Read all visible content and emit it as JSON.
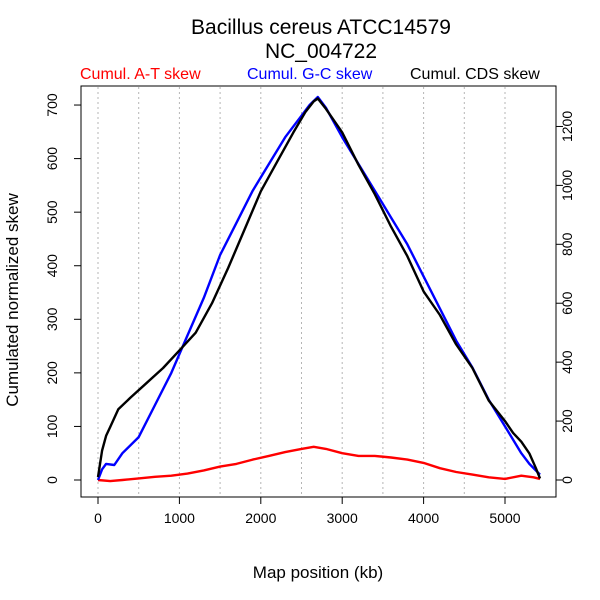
{
  "chart_data": {
    "type": "line",
    "title": "Bacillus cereus ATCC14579",
    "subtitle": "NC_004722",
    "xlabel": "Map position (kb)",
    "ylabel": "Cumulated normalized skew",
    "xlim": [
      0,
      5430
    ],
    "ylim_left": [
      0,
      715
    ],
    "ylim_right": [
      0,
      1300
    ],
    "x_ticks": [
      "0",
      "1000",
      "2000",
      "3000",
      "4000",
      "5000"
    ],
    "y_ticks_left": [
      "0",
      "100",
      "200",
      "300",
      "400",
      "500",
      "600",
      "700"
    ],
    "y_ticks_right": [
      "0",
      "200",
      "400",
      "600",
      "800",
      "1000",
      "1200"
    ],
    "grid": "vertical dotted lines every 500 kb",
    "legend": [
      {
        "label": "Cumul. A-T skew",
        "color": "#ff0000"
      },
      {
        "label": "Cumul. G-C skew",
        "color": "#0000ff"
      },
      {
        "label": "Cumul. CDS skew",
        "color": "#000000"
      }
    ],
    "series": [
      {
        "name": "Cumul. A-T skew",
        "color": "#ff0000",
        "axis": "left",
        "x": [
          0,
          150,
          300,
          500,
          700,
          900,
          1100,
          1300,
          1500,
          1700,
          1900,
          2100,
          2300,
          2500,
          2650,
          2800,
          3000,
          3200,
          3400,
          3600,
          3800,
          4000,
          4200,
          4400,
          4600,
          4800,
          5000,
          5200,
          5350,
          5430
        ],
        "y": [
          0,
          -2,
          0,
          3,
          6,
          8,
          12,
          18,
          25,
          30,
          38,
          45,
          52,
          58,
          62,
          58,
          50,
          45,
          45,
          42,
          38,
          32,
          22,
          15,
          10,
          5,
          2,
          8,
          5,
          2
        ]
      },
      {
        "name": "Cumul. G-C skew",
        "color": "#0000ff",
        "axis": "left",
        "x": [
          0,
          50,
          100,
          200,
          300,
          500,
          700,
          900,
          1100,
          1300,
          1500,
          1700,
          1900,
          2100,
          2300,
          2500,
          2600,
          2700,
          2800,
          3000,
          3200,
          3400,
          3600,
          3800,
          4000,
          4200,
          4400,
          4600,
          4800,
          5000,
          5200,
          5300,
          5430
        ],
        "y": [
          0,
          20,
          30,
          28,
          50,
          80,
          140,
          200,
          270,
          340,
          420,
          480,
          540,
          590,
          640,
          680,
          700,
          715,
          695,
          640,
          590,
          540,
          490,
          440,
          380,
          320,
          260,
          210,
          150,
          100,
          50,
          30,
          10
        ]
      },
      {
        "name": "Cumul. CDS skew",
        "color": "#000000",
        "axis": "right",
        "x": [
          0,
          50,
          100,
          150,
          250,
          400,
          600,
          800,
          1000,
          1200,
          1400,
          1600,
          1800,
          2000,
          2200,
          2400,
          2550,
          2650,
          2700,
          2800,
          3000,
          3200,
          3400,
          3600,
          3800,
          4000,
          4200,
          4400,
          4600,
          4800,
          5000,
          5100,
          5200,
          5300,
          5380,
          5430
        ],
        "y": [
          10,
          100,
          150,
          180,
          240,
          280,
          330,
          380,
          440,
          500,
          600,
          720,
          850,
          980,
          1080,
          1180,
          1250,
          1285,
          1295,
          1260,
          1180,
          1070,
          970,
          860,
          760,
          640,
          560,
          460,
          380,
          270,
          200,
          160,
          130,
          90,
          40,
          5
        ]
      }
    ]
  }
}
